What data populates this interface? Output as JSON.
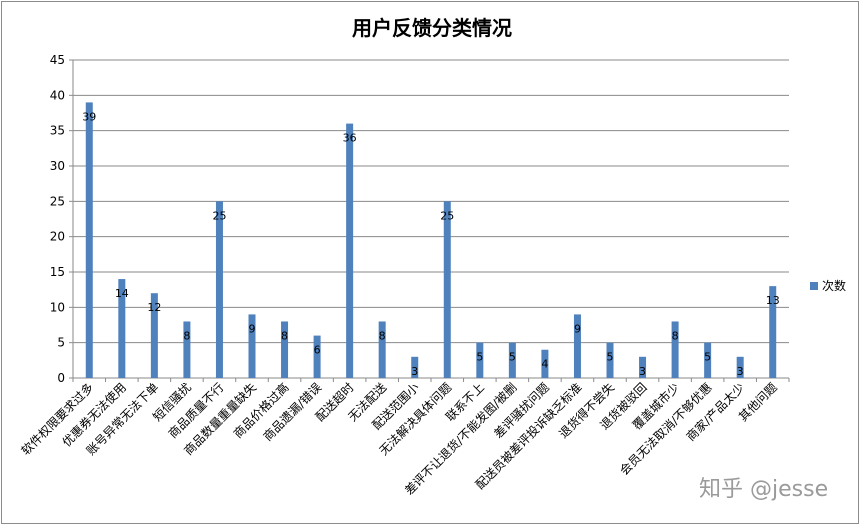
{
  "chart_data": {
    "type": "bar",
    "title": "用户反馈分类情况",
    "categories": [
      "软件权限要求过多",
      "优惠券无法使用",
      "账号异常无法下单",
      "短信骚扰",
      "商品质量不行",
      "商品数量重量缺失",
      "商品价格过高",
      "商品遗漏/错误",
      "配送超时",
      "无法配送",
      "配送范围小",
      "无法解决具体问题",
      "联系不上",
      "差评不让退货/不能发图/被删",
      "差评骚扰问题",
      "配送员被差评投诉缺乏标准",
      "退货得不尝失",
      "退货被驳回",
      "覆盖城市少",
      "会员无法取消/不够优惠",
      "商家/产品太少",
      "其他问题"
    ],
    "series": [
      {
        "name": "次数",
        "color": "#4f81bd",
        "values": [
          39,
          14,
          12,
          8,
          25,
          9,
          8,
          6,
          36,
          8,
          3,
          25,
          5,
          5,
          4,
          9,
          5,
          3,
          8,
          5,
          3,
          13
        ]
      }
    ],
    "ylim": [
      0,
      45
    ],
    "yticks": [
      0,
      5,
      10,
      15,
      20,
      25,
      30,
      35,
      40,
      45
    ],
    "grid": true,
    "legend": "right",
    "data_labels": true
  },
  "watermark": "知乎 @jesse"
}
